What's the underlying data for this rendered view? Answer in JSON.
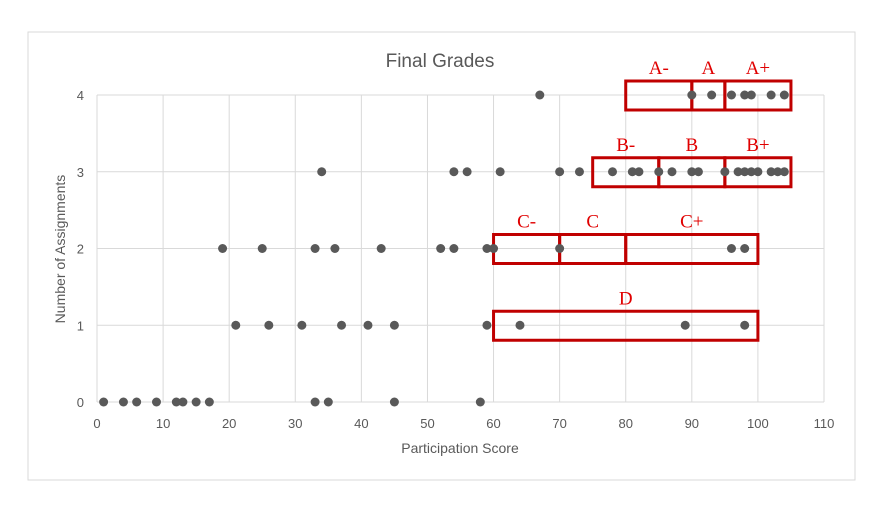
{
  "chart_data": {
    "type": "scatter",
    "title": "Final Grades",
    "xlabel": "Participation Score",
    "ylabel": "Number of Assignments",
    "xlim": [
      0,
      110
    ],
    "ylim": [
      0,
      4
    ],
    "x_ticks": [
      "0",
      "10",
      "20",
      "30",
      "40",
      "50",
      "60",
      "70",
      "80",
      "90",
      "100",
      "110"
    ],
    "y_ticks": [
      "0",
      "1",
      "2",
      "3",
      "4"
    ],
    "grid": true,
    "legend": "none",
    "marker_color": "#595959",
    "points": [
      {
        "x": 1,
        "y": 0
      },
      {
        "x": 4,
        "y": 0
      },
      {
        "x": 6,
        "y": 0
      },
      {
        "x": 9,
        "y": 0
      },
      {
        "x": 12,
        "y": 0
      },
      {
        "x": 13,
        "y": 0
      },
      {
        "x": 15,
        "y": 0
      },
      {
        "x": 17,
        "y": 0
      },
      {
        "x": 33,
        "y": 0
      },
      {
        "x": 35,
        "y": 0
      },
      {
        "x": 45,
        "y": 0
      },
      {
        "x": 58,
        "y": 0
      },
      {
        "x": 21,
        "y": 1
      },
      {
        "x": 26,
        "y": 1
      },
      {
        "x": 31,
        "y": 1
      },
      {
        "x": 37,
        "y": 1
      },
      {
        "x": 41,
        "y": 1
      },
      {
        "x": 45,
        "y": 1
      },
      {
        "x": 59,
        "y": 1
      },
      {
        "x": 64,
        "y": 1
      },
      {
        "x": 89,
        "y": 1
      },
      {
        "x": 98,
        "y": 1
      },
      {
        "x": 19,
        "y": 2
      },
      {
        "x": 25,
        "y": 2
      },
      {
        "x": 33,
        "y": 2
      },
      {
        "x": 36,
        "y": 2
      },
      {
        "x": 43,
        "y": 2
      },
      {
        "x": 52,
        "y": 2
      },
      {
        "x": 54,
        "y": 2
      },
      {
        "x": 59,
        "y": 2
      },
      {
        "x": 60,
        "y": 2
      },
      {
        "x": 70,
        "y": 2
      },
      {
        "x": 96,
        "y": 2
      },
      {
        "x": 98,
        "y": 2
      },
      {
        "x": 34,
        "y": 3
      },
      {
        "x": 54,
        "y": 3
      },
      {
        "x": 56,
        "y": 3
      },
      {
        "x": 61,
        "y": 3
      },
      {
        "x": 70,
        "y": 3
      },
      {
        "x": 73,
        "y": 3
      },
      {
        "x": 78,
        "y": 3
      },
      {
        "x": 81,
        "y": 3
      },
      {
        "x": 82,
        "y": 3
      },
      {
        "x": 85,
        "y": 3
      },
      {
        "x": 87,
        "y": 3
      },
      {
        "x": 90,
        "y": 3
      },
      {
        "x": 91,
        "y": 3
      },
      {
        "x": 95,
        "y": 3
      },
      {
        "x": 97,
        "y": 3
      },
      {
        "x": 98,
        "y": 3
      },
      {
        "x": 99,
        "y": 3
      },
      {
        "x": 100,
        "y": 3
      },
      {
        "x": 102,
        "y": 3
      },
      {
        "x": 103,
        "y": 3
      },
      {
        "x": 104,
        "y": 3
      },
      {
        "x": 67,
        "y": 4
      },
      {
        "x": 90,
        "y": 4
      },
      {
        "x": 93,
        "y": 4
      },
      {
        "x": 96,
        "y": 4
      },
      {
        "x": 98,
        "y": 4
      },
      {
        "x": 99,
        "y": 4
      },
      {
        "x": 102,
        "y": 4
      },
      {
        "x": 104,
        "y": 4
      }
    ],
    "annotations": {
      "color": "#c00000",
      "label_color": "#e00000",
      "boxes": [
        {
          "label": "A-",
          "x0": 80,
          "x1": 90,
          "y": 4
        },
        {
          "label": "A",
          "x0": 90,
          "x1": 95,
          "y": 4
        },
        {
          "label": "A+",
          "x0": 95,
          "x1": 105,
          "y": 4
        },
        {
          "label": "B-",
          "x0": 75,
          "x1": 85,
          "y": 3
        },
        {
          "label": "B",
          "x0": 85,
          "x1": 95,
          "y": 3
        },
        {
          "label": "B+",
          "x0": 95,
          "x1": 105,
          "y": 3
        },
        {
          "label": "C-",
          "x0": 60,
          "x1": 70,
          "y": 2
        },
        {
          "label": "C",
          "x0": 70,
          "x1": 80,
          "y": 2
        },
        {
          "label": "C+",
          "x0": 80,
          "x1": 100,
          "y": 2
        },
        {
          "label": "D",
          "x0": 60,
          "x1": 100,
          "y": 1
        }
      ]
    }
  }
}
